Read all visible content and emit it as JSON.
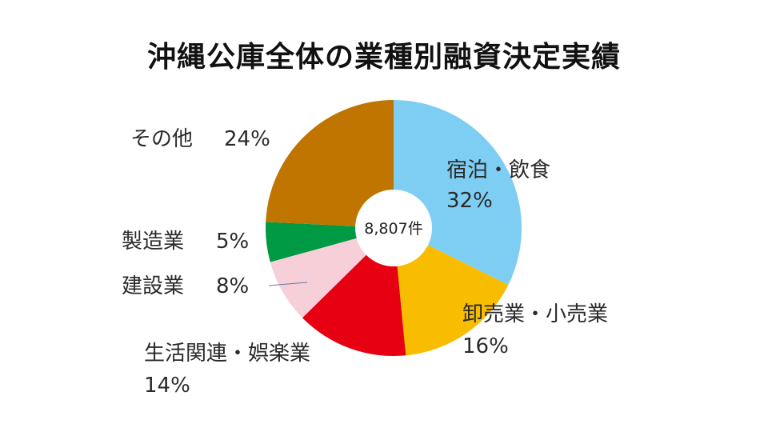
{
  "chart_data": {
    "type": "pie",
    "title": "沖縄公庫全体の業種別融資決定実績",
    "center_label": "8,807件",
    "slices": [
      {
        "name": "宿泊・飲食",
        "value": 32,
        "percent_label": "32%",
        "color": "#7ecef4"
      },
      {
        "name": "卸売業・小売業",
        "value": 16,
        "percent_label": "16%",
        "color": "#f8bd00"
      },
      {
        "name": "生活関連・娯楽業",
        "value": 14,
        "percent_label": "14%",
        "color": "#e60012"
      },
      {
        "name": "建設業",
        "value": 8,
        "percent_label": "8%",
        "color": "#f7cfd8"
      },
      {
        "name": "製造業",
        "value": 5,
        "percent_label": "5%",
        "color": "#009944"
      },
      {
        "name": "その他",
        "value": 24,
        "percent_label": "24%",
        "color": "#bf7500"
      }
    ]
  }
}
